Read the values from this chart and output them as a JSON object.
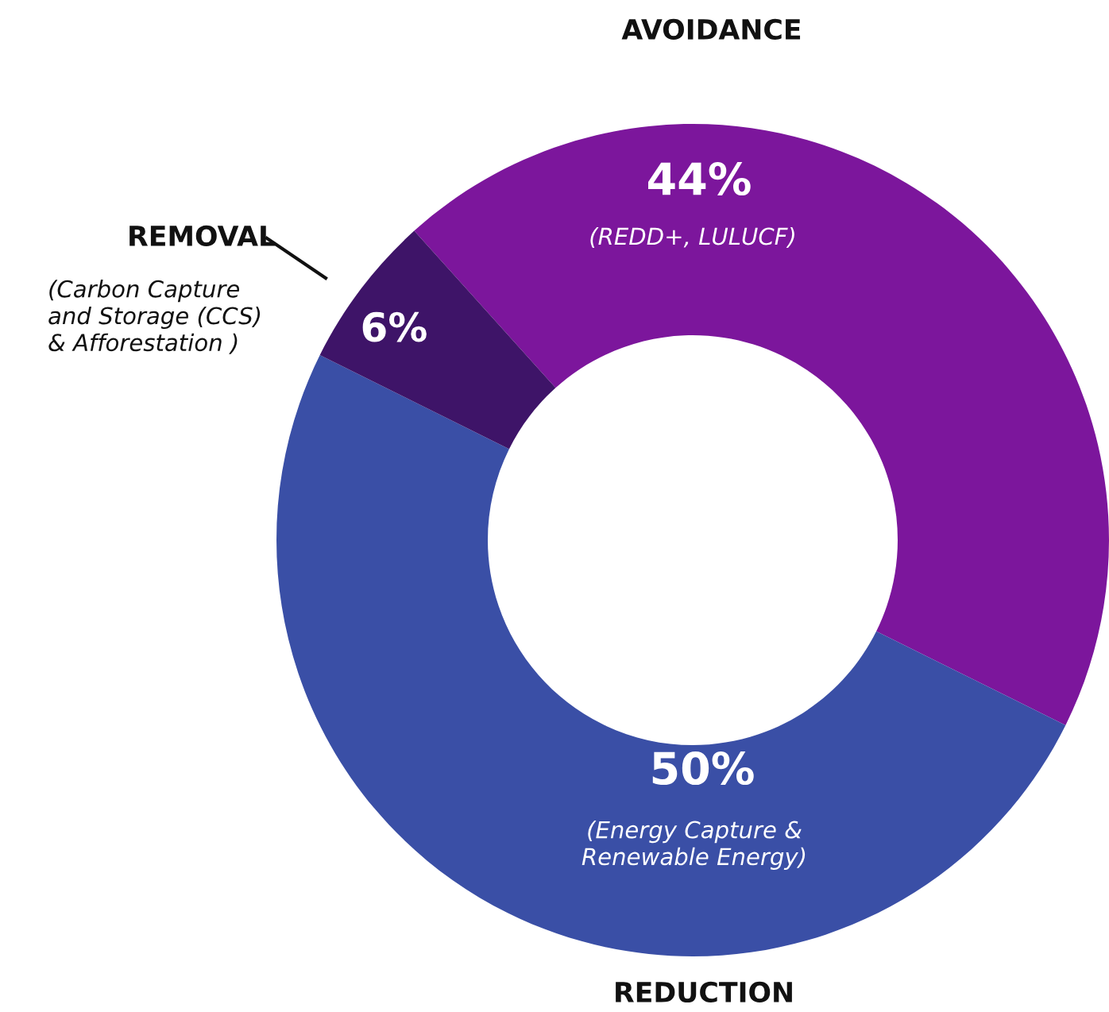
{
  "chart_data": {
    "type": "donut",
    "categories": [
      "AVOIDANCE",
      "REDUCTION",
      "REMOVAL"
    ],
    "values": [
      44,
      50,
      6
    ],
    "colors": [
      "#7c169c",
      "#3a4fa6",
      "#3e1468"
    ],
    "value_labels": [
      "44%",
      "50%",
      "6%"
    ],
    "annotations": [
      "(REDD+, LULUCF)",
      "(Energy Capture &\nRenewable Energy)",
      "(Carbon Capture\nand Storage (CCS)\n& Afforestation )"
    ]
  }
}
